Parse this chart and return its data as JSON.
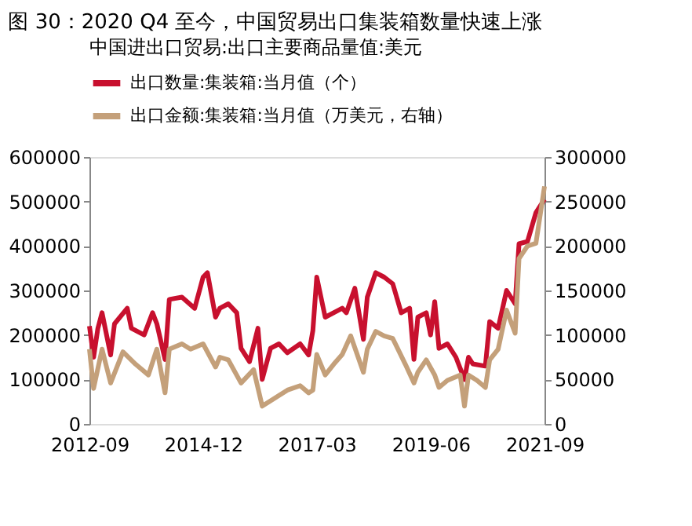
{
  "chart_data": {
    "type": "line",
    "title": "图 30：2020 Q4 至今，中国贸易出口集装箱数量快速上涨",
    "legend_title": "中国进出口贸易:出口主要商品量值:美元",
    "legend": "top left",
    "grid": false,
    "marker": "none",
    "line_style": "solid",
    "xlim": [
      "2012-09",
      "2021-09"
    ],
    "xticks": [
      "2012-09",
      "2014-12",
      "2017-03",
      "2019-06",
      "2021-09"
    ],
    "ylim": [
      0,
      600000
    ],
    "yticks": [
      0,
      100000,
      200000,
      300000,
      400000,
      500000,
      600000
    ],
    "y2lim": [
      0,
      300000
    ],
    "y2ticks": [
      0,
      50000,
      100000,
      150000,
      200000,
      250000,
      300000
    ],
    "series": [
      {
        "name": "出口数量:集装箱:当月值（个）",
        "color": "#c8102e",
        "x": [
          "2012-09",
          "2012-10",
          "2012-11",
          "2012-12",
          "2013-02",
          "2013-03",
          "2013-06",
          "2013-07",
          "2013-10",
          "2013-12",
          "2014-01",
          "2014-03",
          "2014-04",
          "2014-07",
          "2014-10",
          "2014-12",
          "2015-01",
          "2015-03",
          "2015-04",
          "2015-06",
          "2015-08",
          "2015-09",
          "2015-11",
          "2016-01",
          "2016-02",
          "2016-04",
          "2016-06",
          "2016-08",
          "2016-11",
          "2017-01",
          "2017-02",
          "2017-03",
          "2017-05",
          "2017-07",
          "2017-09",
          "2017-10",
          "2017-12",
          "2018-02",
          "2018-03",
          "2018-05",
          "2018-07",
          "2018-09",
          "2018-11",
          "2019-01",
          "2019-02",
          "2019-03",
          "2019-05",
          "2019-06",
          "2019-07",
          "2019-08",
          "2019-10",
          "2019-12",
          "2020-02",
          "2020-03",
          "2020-04",
          "2020-07",
          "2020-08",
          "2020-10",
          "2020-12",
          "2021-02",
          "2021-03",
          "2021-05",
          "2021-07",
          "2021-09"
        ],
        "values": [
          220000,
          150000,
          215000,
          250000,
          155000,
          225000,
          260000,
          215000,
          200000,
          250000,
          225000,
          145000,
          280000,
          285000,
          260000,
          330000,
          340000,
          240000,
          260000,
          270000,
          250000,
          170000,
          140000,
          215000,
          100000,
          170000,
          180000,
          160000,
          180000,
          155000,
          210000,
          330000,
          240000,
          250000,
          260000,
          250000,
          305000,
          190000,
          285000,
          340000,
          330000,
          315000,
          250000,
          260000,
          145000,
          240000,
          250000,
          200000,
          275000,
          170000,
          180000,
          150000,
          100000,
          150000,
          135000,
          130000,
          230000,
          215000,
          300000,
          270000,
          405000,
          410000,
          475000,
          505000
        ]
      },
      {
        "name": "出口金额:集装箱:当月值（万美元，右轴）",
        "color": "#c4a07a",
        "axis": "y2",
        "x": [
          "2012-09",
          "2012-10",
          "2012-12",
          "2013-02",
          "2013-05",
          "2013-08",
          "2013-11",
          "2014-01",
          "2014-03",
          "2014-04",
          "2014-07",
          "2014-09",
          "2014-12",
          "2015-03",
          "2015-04",
          "2015-06",
          "2015-09",
          "2015-12",
          "2016-02",
          "2016-06",
          "2016-08",
          "2016-11",
          "2017-01",
          "2017-02",
          "2017-03",
          "2017-05",
          "2017-07",
          "2017-09",
          "2017-11",
          "2018-02",
          "2018-03",
          "2018-05",
          "2018-07",
          "2018-09",
          "2018-12",
          "2019-02",
          "2019-03",
          "2019-05",
          "2019-07",
          "2019-08",
          "2019-10",
          "2020-01",
          "2020-02",
          "2020-03",
          "2020-05",
          "2020-07",
          "2020-08",
          "2020-10",
          "2020-12",
          "2021-02",
          "2021-03",
          "2021-05",
          "2021-07",
          "2021-09"
        ],
        "values": [
          84000,
          40000,
          84000,
          46000,
          81000,
          67000,
          55000,
          84000,
          35000,
          84000,
          90000,
          84000,
          90000,
          64000,
          75000,
          72000,
          46000,
          61000,
          20000,
          32000,
          38000,
          43000,
          35000,
          38000,
          78000,
          55000,
          67000,
          78000,
          99000,
          58000,
          84000,
          104000,
          99000,
          96000,
          67000,
          46000,
          58000,
          72000,
          55000,
          41000,
          49000,
          55000,
          20000,
          55000,
          49000,
          41000,
          72000,
          84000,
          128000,
          102000,
          186000,
          200000,
          203000,
          267000
        ]
      }
    ]
  }
}
